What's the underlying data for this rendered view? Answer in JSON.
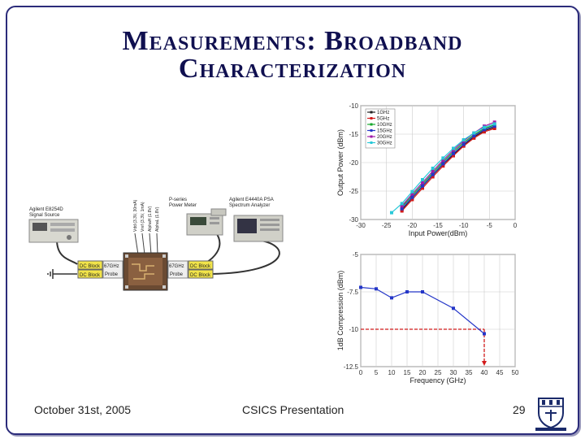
{
  "slide": {
    "title_line1": "Measurements: Broadband",
    "title_line2": "Characterization",
    "footer_date": "October 31st, 2005",
    "footer_center": "CSICS Presentation",
    "page_number": "29"
  },
  "setup": {
    "source_name": "Agilent E8254D",
    "source_sub": "Signal Source",
    "meter_name": "P-series",
    "meter_sub": "Power Meter",
    "psa_name": "Agilent E4440A PSA",
    "psa_sub": "Spectrum Analyzer",
    "dc_block": "DC Block",
    "probe_l": "67GHz",
    "probe_r": "67GHz",
    "probe_word": "Probe",
    "bias1": "Vdd (3.3V, 30mA)",
    "bias2": "Vref (3.3V, 1mA)",
    "bias3": "AlphaH (1.8V)",
    "bias4": "AlphaL (1.8V)"
  },
  "chart_data": [
    {
      "type": "line",
      "xlabel": "Input Power(dBm)",
      "ylabel": "Output Power (dBm)",
      "xlim": [
        -30,
        0
      ],
      "ylim": [
        -30,
        -10
      ],
      "xticks": [
        "-30",
        "-25",
        "-20",
        "-15",
        "-10",
        "-5",
        "0"
      ],
      "yticks": [
        "-10",
        "-15",
        "-20",
        "-25",
        "-30"
      ],
      "grid": true,
      "legend": "top-left",
      "series": [
        {
          "name": "1GHz",
          "color": "#222222",
          "x": [
            -22,
            -20,
            -18,
            -16,
            -14,
            -12,
            -10,
            -8,
            -6,
            -4
          ],
          "y": [
            -28.3,
            -26.2,
            -24.2,
            -22.2,
            -20.3,
            -18.6,
            -16.9,
            -15.5,
            -14.4,
            -13.8
          ]
        },
        {
          "name": "5GHz",
          "color": "#d21a1a",
          "x": [
            -22,
            -20,
            -18,
            -16,
            -14,
            -12,
            -10,
            -8,
            -6,
            -4
          ],
          "y": [
            -28.5,
            -26.5,
            -24.5,
            -22.5,
            -20.6,
            -18.8,
            -17.1,
            -15.7,
            -14.6,
            -14.0
          ]
        },
        {
          "name": "10GHz",
          "color": "#16a62b",
          "x": [
            -22,
            -20,
            -18,
            -16,
            -14,
            -12,
            -10,
            -8,
            -6,
            -4
          ],
          "y": [
            -27.8,
            -25.8,
            -23.8,
            -21.8,
            -19.9,
            -18.1,
            -16.5,
            -15.1,
            -14.0,
            -13.4
          ]
        },
        {
          "name": "15GHz",
          "color": "#2436c8",
          "x": [
            -22,
            -20,
            -18,
            -16,
            -14,
            -12,
            -10,
            -8,
            -6,
            -4
          ],
          "y": [
            -28.1,
            -26.1,
            -24.1,
            -22.1,
            -20.2,
            -18.4,
            -16.8,
            -15.3,
            -14.2,
            -13.6
          ]
        },
        {
          "name": "20GHz",
          "color": "#a01aa8",
          "x": [
            -22,
            -20,
            -18,
            -16,
            -14,
            -12,
            -10,
            -8,
            -6,
            -4
          ],
          "y": [
            -27.6,
            -25.5,
            -23.5,
            -21.5,
            -19.6,
            -17.8,
            -16.2,
            -14.8,
            -13.6,
            -12.9
          ]
        },
        {
          "name": "30GHz",
          "color": "#28c8d8",
          "x": [
            -24,
            -22,
            -20,
            -18,
            -16,
            -14,
            -12,
            -10,
            -8,
            -6,
            -4
          ],
          "y": [
            -28.8,
            -27.2,
            -25.1,
            -23.0,
            -21.0,
            -19.2,
            -17.5,
            -16.0,
            -14.8,
            -13.8,
            -13.2
          ]
        }
      ]
    },
    {
      "type": "line",
      "xlabel": "Frequency (GHz)",
      "ylabel": "1dB Compression (dBm)",
      "xlim": [
        0,
        50
      ],
      "ylim": [
        -12.5,
        -5
      ],
      "xticks": [
        "0",
        "5",
        "10",
        "15",
        "20",
        "25",
        "30",
        "35",
        "40",
        "45",
        "50"
      ],
      "yticks": [
        "-5",
        "-7.5",
        "-10",
        "-12.5"
      ],
      "grid": true,
      "series": [
        {
          "name": "",
          "color": "#2436c8",
          "x": [
            0,
            5,
            10,
            15,
            20,
            30,
            40
          ],
          "y": [
            -7.2,
            -7.3,
            -7.9,
            -7.5,
            -7.5,
            -8.6,
            -10.3
          ]
        }
      ],
      "annotation": {
        "x": 40,
        "y": -10,
        "color": "#d21a1a"
      }
    }
  ]
}
